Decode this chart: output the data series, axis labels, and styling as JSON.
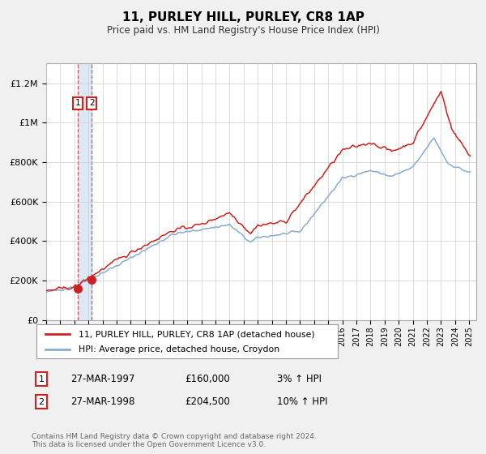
{
  "title": "11, PURLEY HILL, PURLEY, CR8 1AP",
  "subtitle": "Price paid vs. HM Land Registry's House Price Index (HPI)",
  "legend_line1": "11, PURLEY HILL, PURLEY, CR8 1AP (detached house)",
  "legend_line2": "HPI: Average price, detached house, Croydon",
  "annotation1_date": "27-MAR-1997",
  "annotation1_price": "£160,000",
  "annotation1_hpi": "3% ↑ HPI",
  "annotation2_date": "27-MAR-1998",
  "annotation2_price": "£204,500",
  "annotation2_hpi": "10% ↑ HPI",
  "footnote": "Contains HM Land Registry data © Crown copyright and database right 2024.\nThis data is licensed under the Open Government Licence v3.0.",
  "red_line_color": "#cc2222",
  "blue_line_color": "#88aad4",
  "background_color": "#f0f0f0",
  "plot_bg_color": "#ffffff",
  "grid_color": "#cccccc",
  "annotation_box_color": "#cc2222",
  "vband_color": "#dce9f5",
  "ylim": [
    0,
    1300000
  ],
  "yticks": [
    0,
    200000,
    400000,
    600000,
    800000,
    1000000,
    1200000
  ],
  "ytick_labels": [
    "£0",
    "£200K",
    "£400K",
    "£600K",
    "£800K",
    "£1M",
    "£1.2M"
  ],
  "sale1_x": 1997.23,
  "sale1_y": 160000,
  "sale2_x": 1998.23,
  "sale2_y": 204500,
  "xmin": 1995.0,
  "xmax": 2025.5
}
